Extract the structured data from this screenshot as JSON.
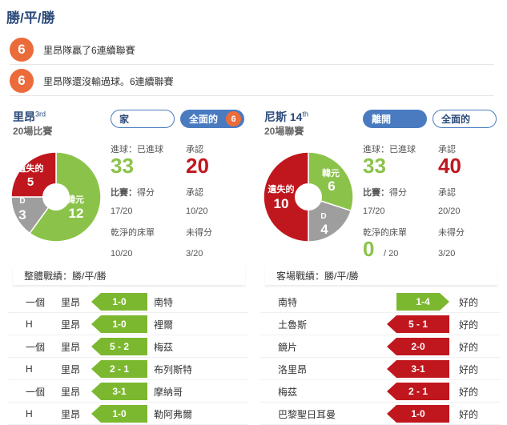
{
  "title": "勝/平/勝",
  "streaks": [
    {
      "count": "6",
      "text": "里昂隊贏了6連續聯賽"
    },
    {
      "count": "6",
      "text": "里昂隊還沒輸過球。6連續聯賽"
    }
  ],
  "left": {
    "team": "里昂",
    "rank": "3rd",
    "sub": "20場比賽",
    "btn_home": "家",
    "btn_all": "全面的",
    "btn_all_badge": "6",
    "donut": {
      "loss_label": "遺失的",
      "loss": "5",
      "draw_label": "D",
      "draw": "3",
      "win_label": "韓元",
      "win": "12",
      "fractions": {
        "win": 12,
        "draw": 3,
        "loss": 5
      }
    },
    "stats": {
      "goals_for_label": "進球：已進球",
      "goals_for": "33",
      "goals_against_label": "承認",
      "goals_against": "20",
      "match_label": "比賽：",
      "match_label2": "得分",
      "match_val": "17/20",
      "conceded_label": "承認",
      "conceded_val": "10/20",
      "clean_label": "乾淨的床單",
      "clean_val": "10/20",
      "nogoal_label": "未得分",
      "nogoal_val": "3/20"
    },
    "record_title": "整體戰績：勝/平/勝",
    "matches": [
      {
        "type": "一個",
        "home": "里昂",
        "score": "1-0",
        "opp": "南特"
      },
      {
        "type": "H",
        "home": "里昂",
        "score": "1-0",
        "opp": "裡爾"
      },
      {
        "type": "一個",
        "home": "里昂",
        "score": "5 - 2",
        "opp": "梅茲"
      },
      {
        "type": "H",
        "home": "里昂",
        "score": "2 - 1",
        "opp": "布列斯特"
      },
      {
        "type": "一個",
        "home": "里昂",
        "score": "3-1",
        "opp": "摩納哥"
      },
      {
        "type": "H",
        "home": "里昂",
        "score": "1-0",
        "opp": "勒阿弗爾"
      }
    ]
  },
  "right": {
    "team": "尼斯 14",
    "rank": "th",
    "sub": "20場聯賽",
    "btn_away": "離開",
    "btn_all": "全面的",
    "donut": {
      "loss_label": "遺失的",
      "loss": "10",
      "draw_label": "D",
      "draw": "4",
      "win_label": "韓元",
      "win": "6",
      "fractions": {
        "win": 6,
        "draw": 4,
        "loss": 10
      }
    },
    "stats": {
      "goals_for_label": "進球：已進球",
      "goals_for": "33",
      "goals_against_label": "承認",
      "goals_against": "40",
      "match_label": "比賽：",
      "match_label2": "得分",
      "match_val": "17/20",
      "conceded_label": "承認",
      "conceded_val": "20/20",
      "clean_label": "乾淨的床單",
      "clean_val": "0",
      "clean_total": "/ 20",
      "nogoal_label": "未得分",
      "nogoal_val": "3/20"
    },
    "record_title": "客場戰績：勝/平/勝",
    "matches": [
      {
        "home": "南特",
        "score": "1-4",
        "result": "好的",
        "color": "green"
      },
      {
        "home": "土魯斯",
        "score": "5 - 1",
        "result": "好的",
        "color": "red"
      },
      {
        "home": "鏡片",
        "score": "2-0",
        "result": "好的",
        "color": "red"
      },
      {
        "home": "洛里昂",
        "score": "3-1",
        "result": "好的",
        "color": "red"
      },
      {
        "home": "梅茲",
        "score": "2 - 1",
        "result": "好的",
        "color": "red"
      },
      {
        "home": "巴黎聖日耳曼",
        "score": "1-0",
        "result": "好的",
        "color": "red"
      }
    ]
  },
  "colors": {
    "win": "#8bc34a",
    "draw": "#9e9e9e",
    "loss": "#c0171e",
    "accent": "#ec6b3a",
    "brand": "#4a7bc0"
  }
}
